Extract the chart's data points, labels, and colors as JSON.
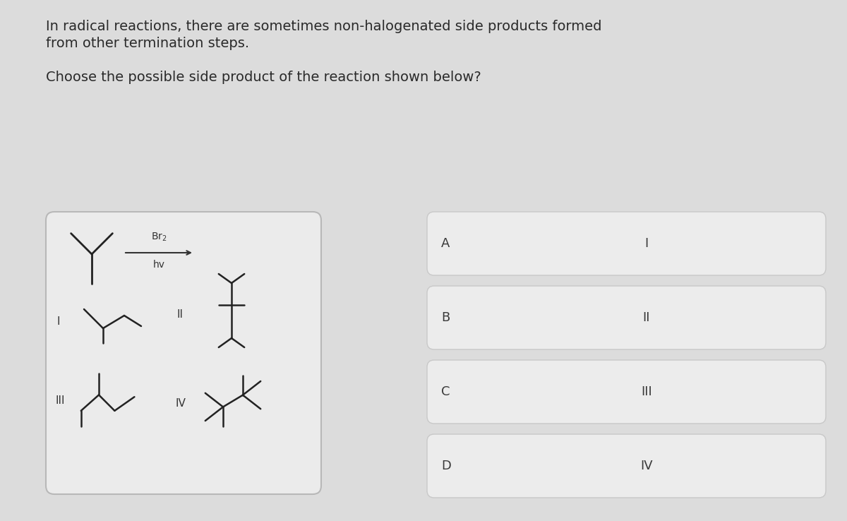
{
  "bg_color": "#dcdcdc",
  "box_bg": "#ececec",
  "box_border": "#c0c0c0",
  "text_color": "#2a2a2a",
  "title_line1": "In radical reactions, there are sometimes non-halogenated side products formed",
  "title_line2": "from other termination steps.",
  "question": "Choose the possible side product of the reaction shown below?",
  "answer_labels": [
    "A",
    "B",
    "C",
    "D"
  ],
  "answer_roman": [
    "I",
    "II",
    "III",
    "IV"
  ],
  "font_size_title": 14,
  "font_size_question": 14
}
